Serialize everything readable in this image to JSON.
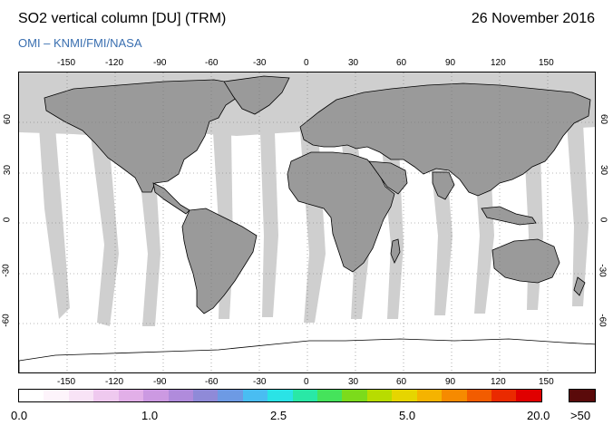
{
  "header": {
    "title": "SO2 vertical column [DU] (TRM)",
    "date": "26 November 2016",
    "credit": "OMI  –  KNMI/FMI/NASA"
  },
  "map": {
    "projection": "equirectangular",
    "lon_range": [
      -180,
      180
    ],
    "lat_range": [
      -90,
      90
    ],
    "lon_ticks": [
      "-150",
      "-120",
      "-90",
      "-60",
      "-30",
      "0",
      "30",
      "60",
      "90",
      "120",
      "150"
    ],
    "lat_ticks": [
      "60",
      "30",
      "0",
      "-30",
      "-60"
    ],
    "grid": "dotted",
    "colors": {
      "ocean_background": "#ffffff",
      "land": "#9a9a9a",
      "missing_data_gap": "#cfcfcf",
      "coastline": "#000000"
    }
  },
  "colorbar": {
    "labels": [
      "0.0",
      "1.0",
      "2.5",
      "5.0",
      "20.0"
    ],
    "over_label": ">50",
    "over_color": "#5a0a0a",
    "colors": [
      "#ffffff",
      "#fdf4fb",
      "#f8e3f6",
      "#efc9ef",
      "#e2afe8",
      "#cc99e2",
      "#b08bdc",
      "#8f8ad8",
      "#6d9ae4",
      "#49bdf2",
      "#2ae3e6",
      "#29e8a6",
      "#45e35b",
      "#7cdb1b",
      "#b8dc00",
      "#e6d500",
      "#f5b300",
      "#f68a00",
      "#f25c00",
      "#ea2a00",
      "#e00000"
    ]
  }
}
